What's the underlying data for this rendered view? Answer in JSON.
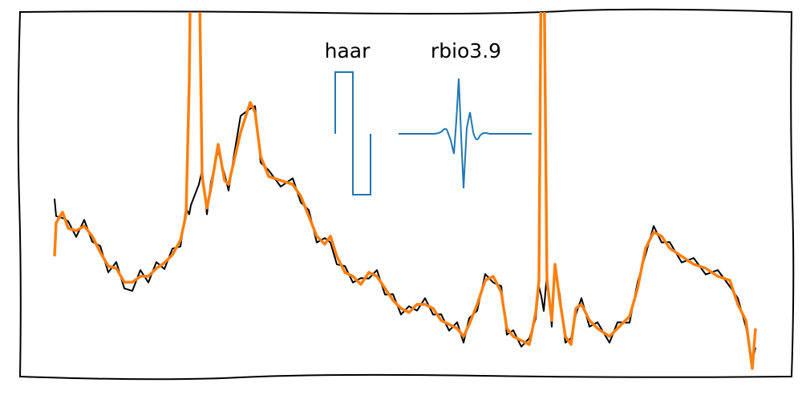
{
  "chart_data": {
    "type": "line",
    "annotations": [
      "haar",
      "rbio3.9"
    ],
    "xlim": [
      0,
      962
    ],
    "ylim": [
      0,
      100
    ],
    "x": [
      43,
      45,
      53,
      60,
      70,
      80,
      90,
      100,
      110,
      120,
      130,
      140,
      150,
      160,
      170,
      180,
      190,
      200,
      207,
      211,
      213,
      223,
      227,
      233,
      238,
      247,
      255,
      260,
      267,
      275,
      287,
      293,
      300,
      310,
      325,
      340,
      350,
      360,
      370,
      380,
      387,
      395,
      405,
      415,
      425,
      435,
      445,
      455,
      465,
      475,
      485,
      495,
      505,
      515,
      525,
      535,
      545,
      553,
      560,
      570,
      580,
      590,
      600,
      607,
      615,
      625,
      635,
      643,
      647,
      650,
      653,
      657,
      663,
      667,
      673,
      680,
      687,
      693,
      700,
      710,
      720,
      735,
      745,
      760,
      770,
      780,
      790,
      800,
      810,
      825,
      840,
      855,
      870,
      885,
      895,
      905,
      913,
      917
    ],
    "series": [
      {
        "color": "#000000",
        "values": [
          48.8,
          44,
          43.5,
          42.6,
          38.3,
          43,
          37,
          35.8,
          28.6,
          31.4,
          24.2,
          23.5,
          29.2,
          25.8,
          31.4,
          29.5,
          35.1,
          35.7,
          46.1,
          44.5,
          47,
          52.7,
          56.6,
          44.5,
          53.3,
          62,
          55.5,
          51,
          61,
          71.5,
          73.5,
          74.2,
          58.7,
          56.6,
          52.1,
          54.4,
          47.8,
          45.7,
          36.8,
          38,
          36.8,
          30.8,
          30.3,
          25.8,
          27,
          26.9,
          29.2,
          22.5,
          22.6,
          17,
          19.3,
          18.1,
          21.5,
          17,
          17.1,
          12.6,
          14.9,
          9.3,
          16,
          18.1,
          28.1,
          25.8,
          24.8,
          11.5,
          12.7,
          8.2,
          10.5,
          15.9,
          24.7,
          22,
          18,
          28.1,
          13.7,
          29.1,
          22.6,
          9.3,
          10.5,
          17,
          21.5,
          13.7,
          14.9,
          9.3,
          14.9,
          14.8,
          25.9,
          33.5,
          41.3,
          36.8,
          36.9,
          31.3,
          32.5,
          28,
          29.2,
          24.7,
          21.5,
          13.7,
          4,
          8
        ]
      },
      {
        "color": "#ff7f0e",
        "values": [
          33.0,
          42.2,
          45.1,
          40.7,
          40.0,
          41.3,
          38.5,
          34.1,
          30.3,
          29.7,
          25.9,
          25.9,
          27.5,
          27.5,
          29.7,
          31.2,
          33.4,
          37.4,
          44.4,
          81.3,
          120,
          120,
          54.9,
          46.2,
          51.6,
          63.7,
          53.8,
          52.7,
          59.3,
          67.0,
          75.2,
          72.5,
          60.4,
          54.9,
          53.8,
          52.7,
          49.5,
          44.0,
          38.5,
          36.3,
          38.5,
          33.0,
          28.6,
          27.5,
          25.3,
          28.6,
          27.5,
          24.2,
          20.9,
          18.7,
          17.6,
          19.8,
          19.8,
          18.7,
          15.4,
          14.3,
          13.2,
          11.0,
          14.3,
          19.8,
          26.4,
          27.5,
          23.1,
          13.2,
          11.0,
          9.9,
          8.8,
          17.6,
          26.4,
          120,
          120,
          26.4,
          15.4,
          30.8,
          20.9,
          11.0,
          8.8,
          18.7,
          19.8,
          15.4,
          13.2,
          11.0,
          13.2,
          16.5,
          24.2,
          35.2,
          39.6,
          38.5,
          35.2,
          33.0,
          30.8,
          29.7,
          27.5,
          26.4,
          19.8,
          15.4,
          2.2,
          13.2
        ]
      }
    ]
  }
}
